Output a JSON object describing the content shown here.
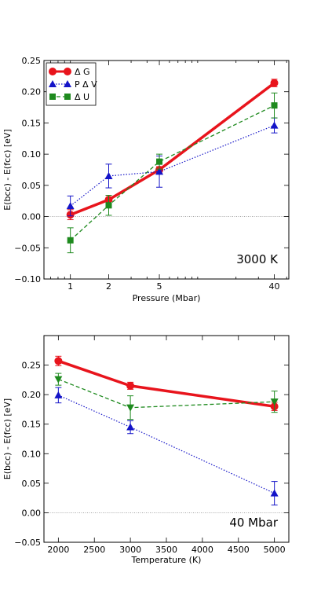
{
  "colors": {
    "dG": "#e8141c",
    "PdV": "#1414c8",
    "dU": "#1e8a1e",
    "zero_line": "#9a9a9a"
  },
  "chart_data": [
    {
      "type": "line",
      "xlabel": "Pressure (Mbar)",
      "ylabel": "E(bcc) - E(fcc) [eV]",
      "xscale": "log",
      "xlim": [
        0.62,
        52
      ],
      "ylim": [
        -0.1,
        0.25
      ],
      "xticks": [
        1,
        2,
        5,
        40
      ],
      "xtick_labels": [
        "1",
        "2",
        "5",
        "40"
      ],
      "yticks": [
        -0.1,
        -0.05,
        0.0,
        0.05,
        0.1,
        0.15,
        0.2,
        0.25
      ],
      "ytick_labels": [
        "−0.10",
        "−0.05",
        "0.00",
        "0.05",
        "0.10",
        "0.15",
        "0.20",
        "0.25"
      ],
      "annotation": "3000 K",
      "legend_position": "top-left",
      "series": [
        {
          "name": "Δ G",
          "x": [
            1,
            2,
            5,
            40
          ],
          "values": [
            0.003,
            0.027,
            0.075,
            0.214
          ],
          "errors": [
            0.008,
            0.007,
            0.005,
            0.006
          ],
          "marker": "circle",
          "style": "solid"
        },
        {
          "name": "P Δ V",
          "x": [
            1,
            2,
            5,
            40
          ],
          "values": [
            0.017,
            0.065,
            0.072,
            0.146
          ],
          "errors": [
            0.016,
            0.019,
            0.025,
            0.012
          ],
          "marker": "triangle-up",
          "style": "dotted"
        },
        {
          "name": "Δ U",
          "x": [
            1,
            2,
            5,
            40
          ],
          "values": [
            -0.038,
            0.018,
            0.088,
            0.178
          ],
          "errors": [
            0.02,
            0.016,
            0.012,
            0.02
          ],
          "marker": "square",
          "style": "dashed"
        }
      ]
    },
    {
      "type": "line",
      "xlabel": "Temperature (K)",
      "ylabel": "E(bcc) - E(fcc) [eV]",
      "xlim": [
        1800,
        5200
      ],
      "ylim": [
        -0.05,
        0.3
      ],
      "xticks": [
        2000,
        2500,
        3000,
        3500,
        4000,
        4500,
        5000
      ],
      "xtick_labels": [
        "2000",
        "2500",
        "3000",
        "3500",
        "4000",
        "4500",
        "5000"
      ],
      "yticks": [
        -0.05,
        0.0,
        0.05,
        0.1,
        0.15,
        0.2,
        0.25
      ],
      "ytick_labels": [
        "−0.05",
        "0.00",
        "0.05",
        "0.10",
        "0.15",
        "0.20",
        "0.25"
      ],
      "annotation": "40 Mbar",
      "series": [
        {
          "name": "Δ G",
          "x": [
            2000,
            3000,
            5000
          ],
          "values": [
            0.257,
            0.215,
            0.18
          ],
          "errors": [
            0.008,
            0.006,
            0.007
          ],
          "marker": "circle",
          "style": "solid"
        },
        {
          "name": "P Δ V",
          "x": [
            2000,
            3000,
            5000
          ],
          "values": [
            0.199,
            0.145,
            0.033
          ],
          "errors": [
            0.013,
            0.011,
            0.02
          ],
          "marker": "triangle-up",
          "style": "dotted"
        },
        {
          "name": "Δ U",
          "x": [
            2000,
            3000,
            5000
          ],
          "values": [
            0.226,
            0.178,
            0.188
          ],
          "errors": [
            0.01,
            0.02,
            0.018
          ],
          "marker": "triangle-down",
          "style": "dashed"
        }
      ]
    }
  ]
}
